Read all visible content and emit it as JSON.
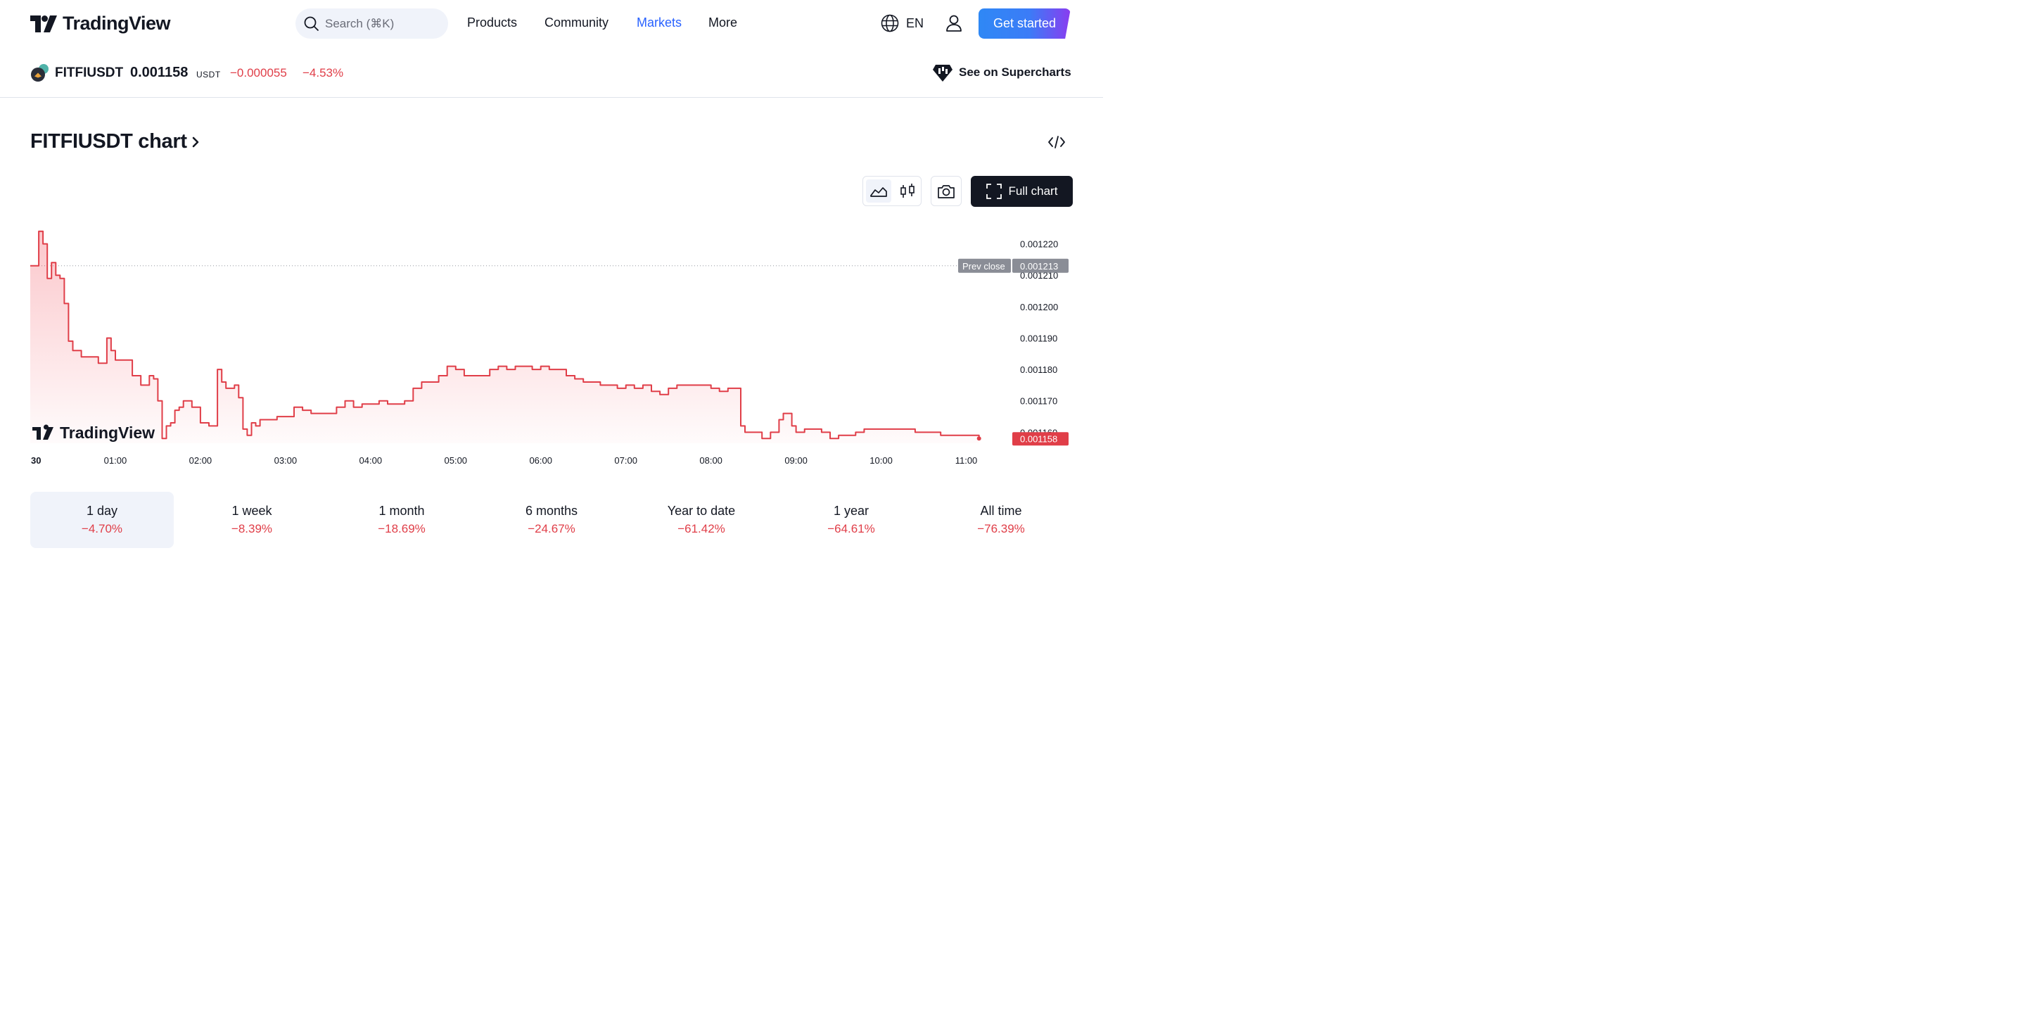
{
  "header": {
    "brand": "TradingView",
    "search_placeholder": "Search (⌘K)",
    "nav": [
      "Products",
      "Community",
      "Markets",
      "More"
    ],
    "active_nav": "Markets",
    "language": "EN",
    "cta": "Get started"
  },
  "ticker": {
    "symbol": "FITFIUSDT",
    "price": "0.001158",
    "currency": "USDT",
    "change": "−0.000055",
    "change_pct": "−4.53%",
    "supercharts": "See on Supercharts"
  },
  "chart_section": {
    "title": "FITFIUSDT chart",
    "full_chart": "Full chart"
  },
  "colors": {
    "negative": "#e03e48",
    "accent": "#2962ff",
    "dark": "#131722"
  },
  "chart_data": {
    "type": "area",
    "y_ticks": [
      "0.001220",
      "0.001210",
      "0.001200",
      "0.001190",
      "0.001180",
      "0.001170",
      "0.001160"
    ],
    "x_ticks": [
      "30",
      "01:00",
      "02:00",
      "03:00",
      "04:00",
      "05:00",
      "06:00",
      "07:00",
      "08:00",
      "09:00",
      "10:00",
      "11:00"
    ],
    "ylim": [
      0.0011565,
      0.0012255
    ],
    "xlim": [
      0,
      11.5
    ],
    "prev_close": {
      "label": "Prev close",
      "value": 0.001213,
      "text": "0.001213"
    },
    "last": {
      "value": 0.001158,
      "text": "0.001158"
    },
    "watermark": "TradingView",
    "series": [
      {
        "x": [
          0,
          0.05,
          0.1,
          0.15,
          0.2,
          0.25,
          0.3,
          0.35,
          0.4,
          0.45,
          0.5,
          0.55,
          0.6,
          0.7,
          0.8,
          0.9,
          0.95,
          1.0,
          1.05,
          1.1,
          1.2,
          1.3,
          1.4,
          1.45,
          1.5,
          1.55,
          1.6,
          1.65,
          1.7,
          1.75,
          1.8,
          1.9,
          2.0,
          2.1,
          2.2,
          2.25,
          2.3,
          2.35,
          2.4,
          2.45,
          2.5,
          2.55,
          2.6,
          2.65,
          2.7,
          2.8,
          2.9,
          3.0,
          3.1,
          3.2,
          3.3,
          3.4,
          3.5,
          3.6,
          3.7,
          3.8,
          3.9,
          4.0,
          4.1,
          4.2,
          4.3,
          4.4,
          4.5,
          4.6,
          4.7,
          4.8,
          4.9,
          5.0,
          5.1,
          5.2,
          5.3,
          5.4,
          5.5,
          5.6,
          5.7,
          5.8,
          5.9,
          6.0,
          6.1,
          6.2,
          6.3,
          6.4,
          6.5,
          6.6,
          6.7,
          6.8,
          6.9,
          7.0,
          7.1,
          7.2,
          7.3,
          7.4,
          7.5,
          7.6,
          7.7,
          7.8,
          7.9,
          8.0,
          8.1,
          8.2,
          8.3,
          8.35,
          8.4,
          8.5,
          8.6,
          8.7,
          8.8,
          8.85,
          8.9,
          8.95,
          9.0,
          9.1,
          9.2,
          9.3,
          9.4,
          9.5,
          9.6,
          9.7,
          9.8,
          9.9,
          10.0,
          10.1,
          10.2,
          10.3,
          10.4,
          10.5,
          10.6,
          10.7,
          10.8,
          10.9,
          11.0,
          11.05,
          11.1,
          11.15
        ],
        "values": [
          0.001213,
          0.001213,
          0.001224,
          0.00122,
          0.001209,
          0.001214,
          0.00121,
          0.001209,
          0.001201,
          0.001189,
          0.001186,
          0.001186,
          0.001184,
          0.001184,
          0.001182,
          0.00119,
          0.001186,
          0.001183,
          0.001183,
          0.001183,
          0.001178,
          0.001175,
          0.001178,
          0.001177,
          0.00117,
          0.001158,
          0.001162,
          0.001163,
          0.001167,
          0.001168,
          0.00117,
          0.001168,
          0.001163,
          0.001162,
          0.00118,
          0.001176,
          0.001174,
          0.001174,
          0.001175,
          0.001171,
          0.001161,
          0.001159,
          0.001163,
          0.001162,
          0.001164,
          0.001164,
          0.001165,
          0.001165,
          0.001168,
          0.001167,
          0.001166,
          0.001166,
          0.001166,
          0.001168,
          0.00117,
          0.001168,
          0.001169,
          0.001169,
          0.00117,
          0.001169,
          0.001169,
          0.00117,
          0.001174,
          0.001176,
          0.001176,
          0.001178,
          0.001181,
          0.00118,
          0.001178,
          0.001178,
          0.001178,
          0.00118,
          0.001181,
          0.00118,
          0.001181,
          0.001181,
          0.00118,
          0.001181,
          0.00118,
          0.00118,
          0.001178,
          0.001177,
          0.001176,
          0.001176,
          0.001175,
          0.001175,
          0.001174,
          0.001175,
          0.001174,
          0.001175,
          0.001173,
          0.001172,
          0.001174,
          0.001175,
          0.001175,
          0.001175,
          0.001175,
          0.001174,
          0.001173,
          0.001174,
          0.001174,
          0.001162,
          0.00116,
          0.00116,
          0.001158,
          0.00116,
          0.001164,
          0.001166,
          0.001166,
          0.001162,
          0.00116,
          0.001161,
          0.001161,
          0.00116,
          0.001158,
          0.001159,
          0.001159,
          0.00116,
          0.001161,
          0.001161,
          0.001161,
          0.001161,
          0.001161,
          0.001161,
          0.00116,
          0.00116,
          0.00116,
          0.001159,
          0.001159,
          0.001159,
          0.001159,
          0.001159,
          0.001159,
          0.001158
        ]
      }
    ],
    "grid": false
  },
  "periods": [
    {
      "label": "1 day",
      "value": "−4.70%",
      "selected": true
    },
    {
      "label": "1 week",
      "value": "−8.39%"
    },
    {
      "label": "1 month",
      "value": "−18.69%"
    },
    {
      "label": "6 months",
      "value": "−24.67%"
    },
    {
      "label": "Year to date",
      "value": "−61.42%"
    },
    {
      "label": "1 year",
      "value": "−64.61%"
    },
    {
      "label": "All time",
      "value": "−76.39%"
    }
  ]
}
